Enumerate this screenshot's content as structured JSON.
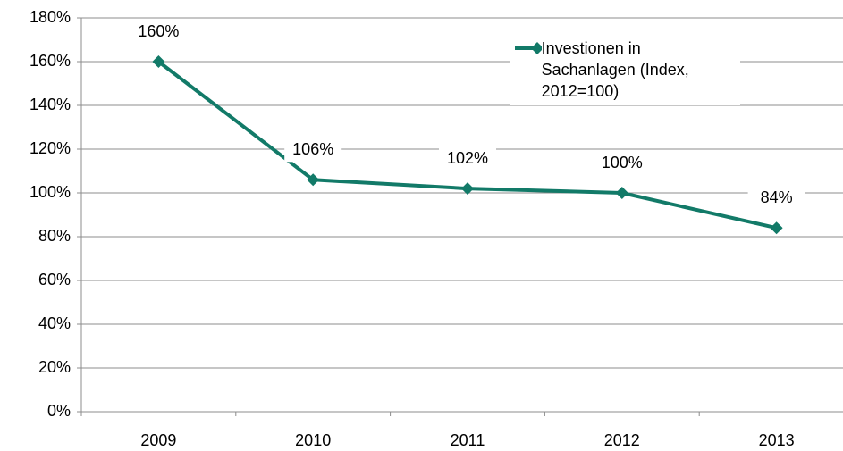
{
  "chart_data": {
    "type": "line",
    "categories": [
      "2009",
      "2010",
      "2011",
      "2012",
      "2013"
    ],
    "series": [
      {
        "name": "Investionen in Sachanlagen (Index, 2012=100)",
        "color": "#127a68",
        "values": [
          160,
          106,
          102,
          100,
          84
        ],
        "value_labels": [
          "160%",
          "106%",
          "102%",
          "100%",
          "84%"
        ]
      }
    ],
    "ylim": [
      0,
      180
    ],
    "yticks": [
      {
        "value": 0,
        "label": "0%"
      },
      {
        "value": 20,
        "label": "20%"
      },
      {
        "value": 40,
        "label": "40%"
      },
      {
        "value": 60,
        "label": "60%"
      },
      {
        "value": 80,
        "label": "80%"
      },
      {
        "value": 100,
        "label": "100%"
      },
      {
        "value": 120,
        "label": "120%"
      },
      {
        "value": 140,
        "label": "140%"
      },
      {
        "value": 160,
        "label": "160%"
      },
      {
        "value": 180,
        "label": "180%"
      }
    ],
    "grid": true,
    "legend": "top right"
  }
}
